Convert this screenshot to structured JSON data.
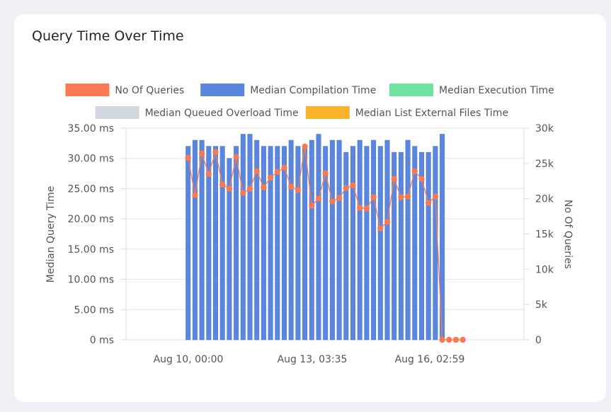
{
  "title": "Query Time Over Time",
  "chart_data": {
    "type": "bar",
    "title": "Query Time Over Time",
    "legend_placement": "top",
    "legend": [
      {
        "name": "No Of Queries",
        "color": "#f87a52"
      },
      {
        "name": "Median Compilation Time",
        "color": "#5b86dd"
      },
      {
        "name": "Median Execution Time",
        "color": "#6fe4a0"
      },
      {
        "name": "Median Queued Overload Time",
        "color": "#d3d8e0"
      },
      {
        "name": "Median List External Files Time",
        "color": "#fbb22d"
      }
    ],
    "y_left": {
      "label": "Median Query Time",
      "ticks": [
        "0 ms",
        "5.00 ms",
        "10.00 ms",
        "15.00 ms",
        "20.00 ms",
        "25.00 ms",
        "30.00 ms",
        "35.00 ms"
      ],
      "range": [
        0,
        35
      ]
    },
    "y_right": {
      "label": "No Of Queries",
      "ticks": [
        "0",
        "5k",
        "10k",
        "15k",
        "20k",
        "25k",
        "30k"
      ],
      "range": [
        0,
        30000
      ]
    },
    "x_ticks": [
      "Aug 10, 00:00",
      "Aug 13, 03:35",
      "Aug 16, 02:59"
    ],
    "series": [
      {
        "name": "Median Compilation Time",
        "kind": "bar",
        "color": "#5b86dd",
        "values": [
          32,
          33,
          33,
          32,
          32,
          32,
          30,
          32,
          34,
          34,
          33,
          32,
          32,
          32,
          32,
          33,
          32,
          32,
          33,
          34,
          32,
          33,
          33,
          31,
          32,
          33,
          32,
          33,
          32,
          33,
          31,
          31,
          33,
          32,
          31,
          31,
          32,
          34
        ]
      },
      {
        "name": "No Of Queries",
        "kind": "line",
        "color": "#f87a52",
        "values": [
          25800,
          20500,
          26400,
          23500,
          26600,
          22000,
          21400,
          25900,
          20800,
          21400,
          23900,
          21600,
          23000,
          23800,
          24400,
          21700,
          21200,
          27400,
          19000,
          20000,
          23600,
          19600,
          20100,
          21500,
          21900,
          18700,
          18600,
          20200,
          15800,
          16700,
          22800,
          20200,
          20300,
          23900,
          22800,
          19400,
          20300,
          0,
          0,
          0,
          0
        ]
      }
    ]
  }
}
